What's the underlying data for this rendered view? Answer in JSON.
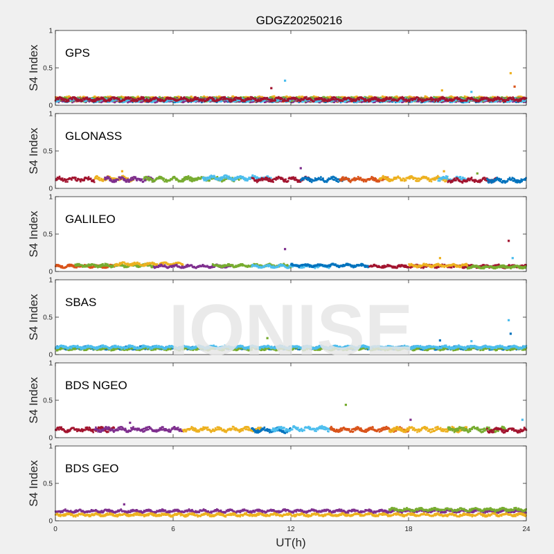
{
  "figure": {
    "title": "GDGZ20250216",
    "xlabel": "UT(h)",
    "watermark": "IONISE"
  },
  "colors": {
    "figure_bg": "#f0f0f0",
    "axes_bg": "#ffffff",
    "axis_line": "#262626",
    "tick_text": "#262626",
    "watermark": "#e6e6e6",
    "series": [
      "#0072BD",
      "#D95319",
      "#EDB120",
      "#7E2F8E",
      "#77AC30",
      "#4DBEEE",
      "#A2142F"
    ]
  },
  "chart_data": [
    {
      "type": "scatter",
      "label": "GPS",
      "ylabel": "S4 Index",
      "xlim": [
        0,
        24
      ],
      "ylim": [
        0,
        1
      ],
      "xticks": [
        0,
        6,
        12,
        18,
        24
      ],
      "yticks": [
        0,
        0.5,
        1
      ],
      "grid": false,
      "baseline_mean": 0.07,
      "baseline_spread": 0.025,
      "segments": [
        {
          "series": 0,
          "x0": 0.0,
          "x1": 24.0,
          "level": 0.07
        },
        {
          "series": 1,
          "x0": 0.0,
          "x1": 24.0,
          "level": 0.08
        },
        {
          "series": 2,
          "x0": 0.0,
          "x1": 24.0,
          "level": 0.09
        },
        {
          "series": 3,
          "x0": 0.0,
          "x1": 24.0,
          "level": 0.07
        },
        {
          "series": 4,
          "x0": 0.0,
          "x1": 24.0,
          "level": 0.08
        },
        {
          "series": 5,
          "x0": 0.0,
          "x1": 24.0,
          "level": 0.07
        },
        {
          "series": 6,
          "x0": 0.0,
          "x1": 24.0,
          "level": 0.08
        }
      ],
      "spikes": [
        {
          "x": 11.0,
          "y": 0.23,
          "series": 6
        },
        {
          "x": 11.7,
          "y": 0.33,
          "series": 5
        },
        {
          "x": 23.2,
          "y": 0.43,
          "series": 2
        },
        {
          "x": 23.4,
          "y": 0.25,
          "series": 1
        },
        {
          "x": 19.7,
          "y": 0.2,
          "series": 2
        },
        {
          "x": 21.2,
          "y": 0.18,
          "series": 5
        }
      ]
    },
    {
      "type": "scatter",
      "label": "GLONASS",
      "ylabel": "S4 Index",
      "xlim": [
        0,
        24
      ],
      "ylim": [
        0,
        1
      ],
      "xticks": [
        0,
        6,
        12,
        18,
        24
      ],
      "yticks": [
        0,
        0.5,
        1
      ],
      "grid": false,
      "baseline_mean": 0.12,
      "baseline_spread": 0.03,
      "segments": [
        {
          "series": 6,
          "x0": 0.0,
          "x1": 2.0,
          "level": 0.12
        },
        {
          "series": 2,
          "x0": 2.0,
          "x1": 4.0,
          "level": 0.13
        },
        {
          "series": 3,
          "x0": 2.5,
          "x1": 5.0,
          "level": 0.12
        },
        {
          "series": 4,
          "x0": 4.5,
          "x1": 7.0,
          "level": 0.12
        },
        {
          "series": 4,
          "x0": 6.5,
          "x1": 9.5,
          "level": 0.13
        },
        {
          "series": 5,
          "x0": 7.5,
          "x1": 11.0,
          "level": 0.14
        },
        {
          "series": 6,
          "x0": 10.0,
          "x1": 13.0,
          "level": 0.12
        },
        {
          "series": 0,
          "x0": 12.5,
          "x1": 15.0,
          "level": 0.12
        },
        {
          "series": 1,
          "x0": 14.5,
          "x1": 17.0,
          "level": 0.12
        },
        {
          "series": 2,
          "x0": 16.5,
          "x1": 20.0,
          "level": 0.13
        },
        {
          "series": 5,
          "x0": 19.5,
          "x1": 21.0,
          "level": 0.13
        },
        {
          "series": 6,
          "x0": 20.0,
          "x1": 22.5,
          "level": 0.11
        },
        {
          "series": 0,
          "x0": 22.0,
          "x1": 24.0,
          "level": 0.11
        }
      ],
      "spikes": [
        {
          "x": 12.5,
          "y": 0.27,
          "series": 3
        },
        {
          "x": 3.4,
          "y": 0.23,
          "series": 2
        },
        {
          "x": 19.8,
          "y": 0.23,
          "series": 2
        },
        {
          "x": 21.5,
          "y": 0.2,
          "series": 4
        }
      ]
    },
    {
      "type": "scatter",
      "label": "GALILEO",
      "ylabel": "S4 Index",
      "xlim": [
        0,
        24
      ],
      "ylim": [
        0,
        1
      ],
      "xticks": [
        0,
        6,
        12,
        18,
        24
      ],
      "yticks": [
        0,
        0.5,
        1
      ],
      "grid": false,
      "baseline_mean": 0.07,
      "baseline_spread": 0.02,
      "segments": [
        {
          "series": 1,
          "x0": 0.0,
          "x1": 3.0,
          "level": 0.07
        },
        {
          "series": 4,
          "x0": 1.0,
          "x1": 5.0,
          "level": 0.08
        },
        {
          "series": 2,
          "x0": 3.0,
          "x1": 6.5,
          "level": 0.1
        },
        {
          "series": 3,
          "x0": 5.0,
          "x1": 9.0,
          "level": 0.07
        },
        {
          "series": 4,
          "x0": 8.0,
          "x1": 12.0,
          "level": 0.08
        },
        {
          "series": 5,
          "x0": 10.0,
          "x1": 14.0,
          "level": 0.07
        },
        {
          "series": 0,
          "x0": 12.0,
          "x1": 16.0,
          "level": 0.08
        },
        {
          "series": 6,
          "x0": 16.0,
          "x1": 24.0,
          "level": 0.07
        },
        {
          "series": 2,
          "x0": 18.0,
          "x1": 21.0,
          "level": 0.08
        },
        {
          "series": 4,
          "x0": 21.0,
          "x1": 24.0,
          "level": 0.06
        }
      ],
      "spikes": [
        {
          "x": 11.7,
          "y": 0.3,
          "series": 3
        },
        {
          "x": 23.1,
          "y": 0.41,
          "series": 6
        },
        {
          "x": 23.3,
          "y": 0.18,
          "series": 5
        },
        {
          "x": 19.6,
          "y": 0.18,
          "series": 2
        }
      ]
    },
    {
      "type": "scatter",
      "label": "SBAS",
      "ylabel": "S4 Index",
      "xlim": [
        0,
        24
      ],
      "ylim": [
        0,
        1
      ],
      "xticks": [
        0,
        6,
        12,
        18,
        24
      ],
      "yticks": [
        0,
        0.5,
        1
      ],
      "grid": false,
      "baseline_mean": 0.09,
      "baseline_spread": 0.02,
      "segments": [
        {
          "series": 0,
          "x0": 0.0,
          "x1": 24.0,
          "level": 0.09
        },
        {
          "series": 4,
          "x0": 0.0,
          "x1": 24.0,
          "level": 0.08
        },
        {
          "series": 5,
          "x0": 0.0,
          "x1": 24.0,
          "level": 0.1
        }
      ],
      "spikes": [
        {
          "x": 23.1,
          "y": 0.46,
          "series": 5
        },
        {
          "x": 23.2,
          "y": 0.28,
          "series": 0
        },
        {
          "x": 10.8,
          "y": 0.22,
          "series": 4
        },
        {
          "x": 19.6,
          "y": 0.19,
          "series": 0
        },
        {
          "x": 21.2,
          "y": 0.18,
          "series": 5
        }
      ]
    },
    {
      "type": "scatter",
      "label": "BDS NGEO",
      "ylabel": "S4 Index",
      "xlim": [
        0,
        24
      ],
      "ylim": [
        0,
        1
      ],
      "xticks": [
        0,
        6,
        12,
        18,
        24
      ],
      "yticks": [
        0,
        0.5,
        1
      ],
      "grid": false,
      "baseline_mean": 0.11,
      "baseline_spread": 0.03,
      "segments": [
        {
          "series": 6,
          "x0": 0.0,
          "x1": 3.0,
          "level": 0.11
        },
        {
          "series": 3,
          "x0": 2.0,
          "x1": 6.5,
          "level": 0.11
        },
        {
          "series": 2,
          "x0": 6.5,
          "x1": 10.5,
          "level": 0.11
        },
        {
          "series": 0,
          "x0": 10.0,
          "x1": 12.0,
          "level": 0.1
        },
        {
          "series": 5,
          "x0": 11.0,
          "x1": 14.0,
          "level": 0.12
        },
        {
          "series": 1,
          "x0": 14.0,
          "x1": 18.0,
          "level": 0.11
        },
        {
          "series": 2,
          "x0": 17.0,
          "x1": 21.0,
          "level": 0.11
        },
        {
          "series": 4,
          "x0": 20.0,
          "x1": 23.0,
          "level": 0.11
        },
        {
          "series": 6,
          "x0": 22.0,
          "x1": 24.0,
          "level": 0.1
        }
      ],
      "spikes": [
        {
          "x": 14.8,
          "y": 0.44,
          "series": 4
        },
        {
          "x": 18.1,
          "y": 0.24,
          "series": 3
        },
        {
          "x": 23.8,
          "y": 0.24,
          "series": 5
        },
        {
          "x": 3.8,
          "y": 0.2,
          "series": 3
        }
      ]
    },
    {
      "type": "scatter",
      "label": "BDS GEO",
      "ylabel": "S4 Index",
      "xlim": [
        0,
        24
      ],
      "ylim": [
        0,
        1
      ],
      "xticks": [
        0,
        6,
        12,
        18,
        24
      ],
      "yticks": [
        0,
        0.5,
        1
      ],
      "grid": false,
      "baseline_mean": 0.12,
      "baseline_spread": 0.02,
      "segments": [
        {
          "series": 3,
          "x0": 0.0,
          "x1": 24.0,
          "level": 0.13
        },
        {
          "series": 2,
          "x0": 0.0,
          "x1": 24.0,
          "level": 0.08
        },
        {
          "series": 4,
          "x0": 17.0,
          "x1": 24.0,
          "level": 0.15
        }
      ],
      "spikes": [
        {
          "x": 3.5,
          "y": 0.22,
          "series": 3
        }
      ]
    }
  ]
}
